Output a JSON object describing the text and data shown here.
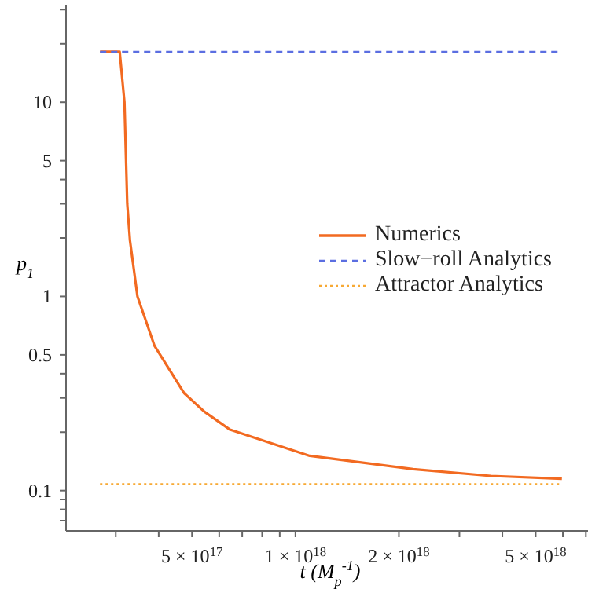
{
  "chart_data": {
    "type": "line",
    "xlabel": "t (M$_{p}$$^{-1}$)",
    "ylabel": "p$_{1}$",
    "log": "xy",
    "legend": "right",
    "xlim": [
      2.15e+17,
      7.1e+18
    ],
    "xticks": [
      {
        "value": 3e+17,
        "label": null
      },
      {
        "value": 4e+17,
        "label": null
      },
      {
        "value": 5e+17,
        "label": "5 × 10$^{17}$"
      },
      {
        "value": 6e+17,
        "label": null
      },
      {
        "value": 7e+17,
        "label": null
      },
      {
        "value": 8e+17,
        "label": null
      },
      {
        "value": 9e+17,
        "label": null
      },
      {
        "value": 1e+18,
        "label": "1 × 10$^{18}$"
      },
      {
        "value": 2e+18,
        "label": "2 × 10$^{18}$"
      },
      {
        "value": 3e+18,
        "label": null
      },
      {
        "value": 4e+18,
        "label": null
      },
      {
        "value": 5e+18,
        "label": "5 × 10$^{18}$"
      },
      {
        "value": 6e+18,
        "label": null
      },
      {
        "value": 7e+18,
        "label": null
      }
    ],
    "ylim": [
      0.062,
      31.8
    ],
    "yticks": [
      {
        "value": 0.07,
        "label": null
      },
      {
        "value": 0.08,
        "label": null
      },
      {
        "value": 0.09,
        "label": null
      },
      0.1,
      {
        "value": 0.2,
        "label": null
      },
      {
        "value": 0.3,
        "label": null
      },
      {
        "value": 0.4,
        "label": null
      },
      0.5,
      1,
      {
        "value": 2,
        "label": null
      },
      {
        "value": 3,
        "label": null
      },
      {
        "value": 4,
        "label": null
      },
      5,
      10,
      {
        "value": 20,
        "label": null
      },
      {
        "value": 30,
        "label": null
      }
    ],
    "series": [
      {
        "name": "Numerics",
        "color": "#f26a21",
        "line_style": "solid",
        "x": [
          2.7e+17,
          3.08e+17,
          3.18e+17,
          3.24e+17,
          3.3e+17,
          3.47e+17,
          3.89e+17,
          4.74e+17,
          5.43e+17,
          6.45e+17,
          1.1e+18,
          2.2e+18,
          3.7e+18,
          5.96e+18
        ],
        "values": [
          18.2,
          18.2,
          10,
          3.0,
          1.94,
          1,
          0.556,
          0.318,
          0.255,
          0.206,
          0.151,
          0.129,
          0.119,
          0.115
        ]
      },
      {
        "name": "Slow−roll Analytics",
        "color": "#5b6ee1",
        "line_style": "dashed",
        "x": [
          2.7e+17,
          5.96e+18
        ],
        "values": [
          18.2,
          18.2
        ]
      },
      {
        "name": "Attractor Analytics",
        "color": "#f7a934",
        "line_style": "dotted",
        "x": [
          2.7e+17,
          5.96e+18
        ],
        "values": [
          0.108,
          0.108
        ]
      }
    ]
  }
}
